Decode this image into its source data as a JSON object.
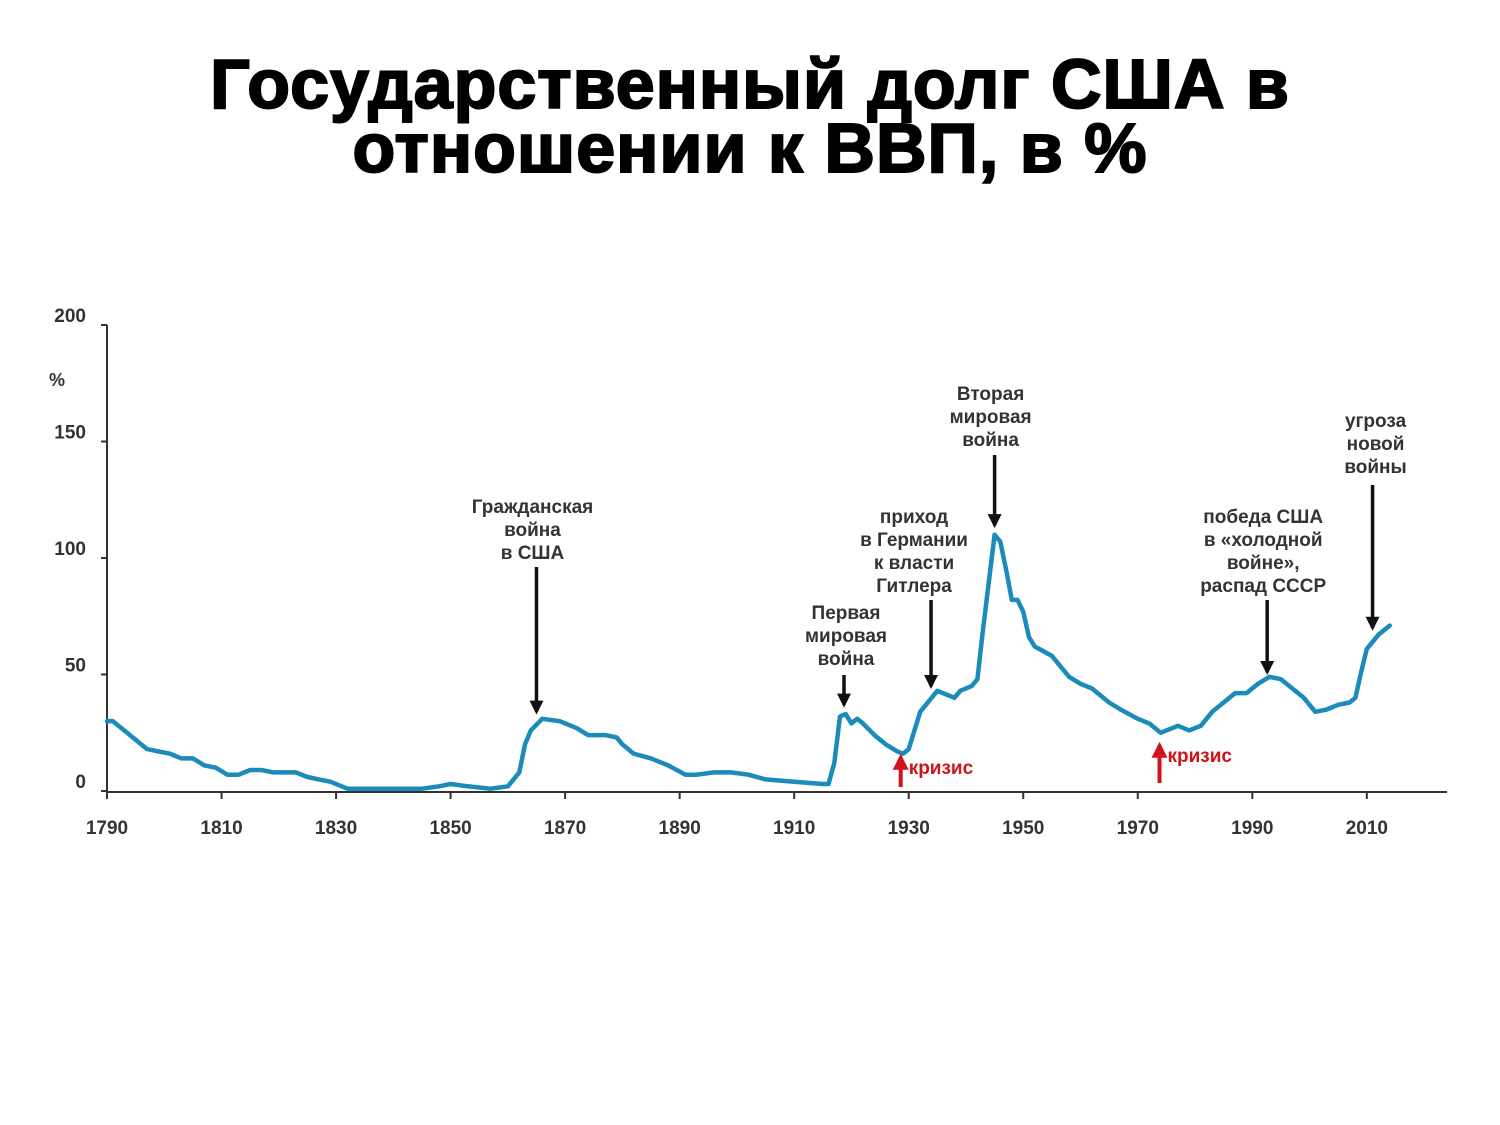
{
  "chart_data": {
    "type": "line",
    "title": "Государственный долг США в\nотношении к ВВП, в %",
    "y_label": "%",
    "color": "#1b8bba",
    "x": [
      1790,
      1791,
      1793,
      1795,
      1797,
      1799,
      1801,
      1803,
      1805,
      1807,
      1809,
      1811,
      1813,
      1815,
      1817,
      1819,
      1821,
      1823,
      1825,
      1827,
      1829,
      1832,
      1835,
      1840,
      1845,
      1848,
      1850,
      1853,
      1857,
      1860,
      1862,
      1863,
      1864,
      1866,
      1869,
      1872,
      1874,
      1877,
      1879,
      1880,
      1882,
      1885,
      1888,
      1891,
      1893,
      1896,
      1899,
      1902,
      1905,
      1910,
      1915,
      1916,
      1917,
      1918,
      1919,
      1920,
      1921,
      1922,
      1924,
      1926,
      1928,
      1929,
      1930,
      1932,
      1934,
      1935,
      1937,
      1938,
      1939,
      1941,
      1942,
      1943,
      1944,
      1945,
      1946,
      1947,
      1948,
      1949,
      1950,
      1951,
      1952,
      1955,
      1957,
      1958,
      1960,
      1962,
      1965,
      1967,
      1970,
      1972,
      1974,
      1975,
      1977,
      1979,
      1981,
      1983,
      1985,
      1987,
      1989,
      1991,
      1993,
      1995,
      1997,
      1999,
      2001,
      2003,
      2005,
      2007,
      2008,
      2009,
      2010,
      2012,
      2014
    ],
    "values": [
      30,
      30,
      26,
      22,
      18,
      17,
      16,
      14,
      14,
      11,
      10,
      7,
      7,
      9,
      9,
      8,
      8,
      8,
      6,
      5,
      4,
      1,
      1,
      1,
      1,
      2,
      3,
      2,
      1,
      2,
      8,
      20,
      26,
      31,
      30,
      27,
      24,
      24,
      23,
      20,
      16,
      14,
      11,
      7,
      7,
      8,
      8,
      7,
      5,
      4,
      3,
      3,
      12,
      32,
      33,
      29,
      31,
      29,
      24,
      20,
      17,
      16,
      18,
      34,
      40,
      43,
      41,
      40,
      43,
      45,
      48,
      70,
      90,
      110,
      107,
      95,
      82,
      82,
      77,
      66,
      62,
      58,
      52,
      49,
      46,
      44,
      38,
      35,
      31,
      29,
      25,
      26,
      28,
      26,
      28,
      34,
      38,
      42,
      42,
      46,
      49,
      48,
      44,
      40,
      34,
      35,
      37,
      38,
      40,
      51,
      61,
      67,
      71
    ],
    "xlim": [
      1790,
      2024
    ],
    "ylim": [
      0,
      200
    ],
    "xticks": [
      1790,
      1810,
      1830,
      1850,
      1870,
      1890,
      1910,
      1930,
      1950,
      1970,
      1990,
      2010
    ],
    "yticks": [
      0,
      50,
      100,
      150,
      200
    ],
    "annotations": [
      {
        "text": "Гражданская\nвойна\nв США",
        "x": 1865,
        "y": 34
      },
      {
        "text": "Первая\nмировая\nвойна",
        "x": 1918.7,
        "y": 37
      },
      {
        "text": "приход\nв Германии\nк власти\nГитлера",
        "x": 1933.9,
        "y": 45
      },
      {
        "text": "Вторая\nмировая\nвойна",
        "x": 1945,
        "y": 114
      },
      {
        "text": "победа США\nв «холодной\nвойне»,\nраспад СССР",
        "x": 1992.6,
        "y": 51
      },
      {
        "text": "угроза\nновой\nвойны",
        "x": 2011,
        "y": 70
      }
    ],
    "crisis_markers": [
      {
        "text": "кризис",
        "x": 1928.6
      },
      {
        "text": "кризис",
        "x": 1973.8
      }
    ]
  }
}
